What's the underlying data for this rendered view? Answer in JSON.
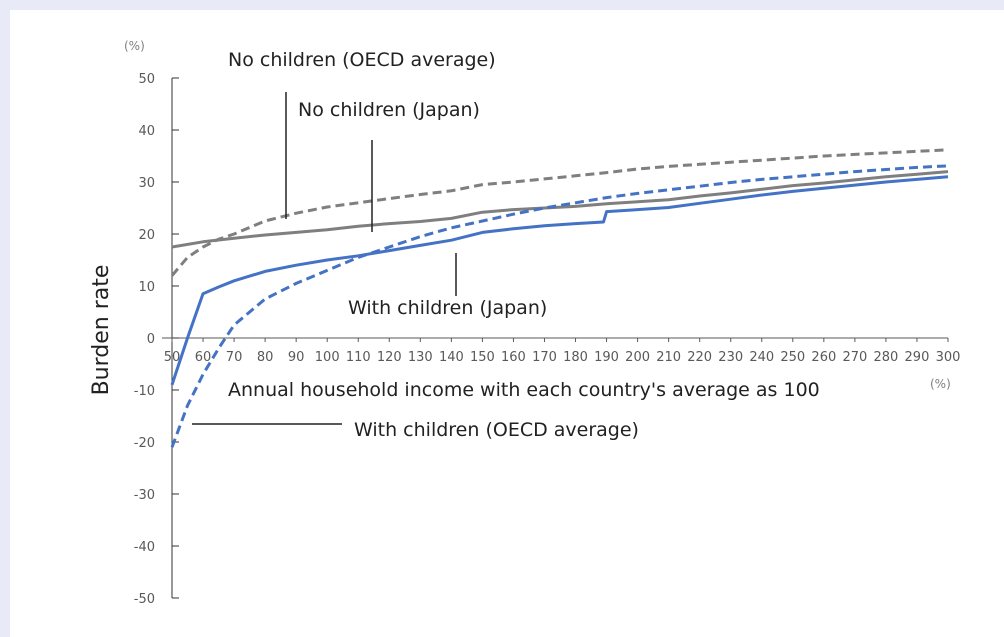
{
  "chart_data": {
    "type": "line",
    "xlabel": "Annual household income with each country's average as 100",
    "ylabel": "Burden rate",
    "x_unit": "(%)",
    "y_unit": "(%)",
    "xlim": [
      50,
      300
    ],
    "ylim": [
      -50,
      50
    ],
    "x_ticks": [
      50,
      60,
      70,
      80,
      90,
      100,
      110,
      120,
      130,
      140,
      150,
      160,
      170,
      180,
      190,
      200,
      210,
      220,
      230,
      240,
      250,
      260,
      270,
      280,
      290,
      300
    ],
    "y_ticks": [
      50,
      40,
      30,
      20,
      10,
      0,
      -10,
      -20,
      -30,
      -40,
      -50
    ],
    "grid": false,
    "legend": "none",
    "series": [
      {
        "name": "No children (OECD average)",
        "color": "#7f7f7f",
        "style": "dashed",
        "points": [
          [
            50,
            12
          ],
          [
            55,
            15.5
          ],
          [
            60,
            17.5
          ],
          [
            65,
            19
          ],
          [
            70,
            20
          ],
          [
            80,
            22.5
          ],
          [
            90,
            24
          ],
          [
            100,
            25.2
          ],
          [
            110,
            26
          ],
          [
            120,
            26.8
          ],
          [
            130,
            27.6
          ],
          [
            140,
            28.3
          ],
          [
            150,
            29.5
          ],
          [
            160,
            30
          ],
          [
            170,
            30.6
          ],
          [
            180,
            31.2
          ],
          [
            190,
            31.8
          ],
          [
            200,
            32.5
          ],
          [
            210,
            33
          ],
          [
            220,
            33.4
          ],
          [
            230,
            33.8
          ],
          [
            240,
            34.2
          ],
          [
            250,
            34.6
          ],
          [
            260,
            35
          ],
          [
            270,
            35.3
          ],
          [
            280,
            35.6
          ],
          [
            290,
            35.9
          ],
          [
            300,
            36.2
          ]
        ]
      },
      {
        "name": "No children (Japan)",
        "color": "#7f7f7f",
        "style": "solid",
        "points": [
          [
            50,
            17.5
          ],
          [
            60,
            18.5
          ],
          [
            70,
            19.2
          ],
          [
            80,
            19.8
          ],
          [
            90,
            20.3
          ],
          [
            100,
            20.8
          ],
          [
            110,
            21.5
          ],
          [
            120,
            22
          ],
          [
            130,
            22.4
          ],
          [
            140,
            23
          ],
          [
            150,
            24.2
          ],
          [
            160,
            24.7
          ],
          [
            170,
            25
          ],
          [
            180,
            25.3
          ],
          [
            190,
            25.8
          ],
          [
            200,
            26.2
          ],
          [
            210,
            26.6
          ],
          [
            220,
            27.3
          ],
          [
            230,
            27.9
          ],
          [
            240,
            28.6
          ],
          [
            250,
            29.3
          ],
          [
            260,
            29.8
          ],
          [
            270,
            30.4
          ],
          [
            280,
            31
          ],
          [
            290,
            31.5
          ],
          [
            300,
            32
          ]
        ]
      },
      {
        "name": "With children (Japan)",
        "color": "#4472c4",
        "style": "solid",
        "points": [
          [
            50,
            -9
          ],
          [
            55,
            0
          ],
          [
            60,
            8.5
          ],
          [
            65,
            9.8
          ],
          [
            70,
            11
          ],
          [
            80,
            12.8
          ],
          [
            90,
            14
          ],
          [
            100,
            15
          ],
          [
            110,
            15.8
          ],
          [
            120,
            16.8
          ],
          [
            130,
            17.8
          ],
          [
            140,
            18.8
          ],
          [
            150,
            20.3
          ],
          [
            160,
            21
          ],
          [
            170,
            21.6
          ],
          [
            180,
            22
          ],
          [
            189,
            22.3
          ],
          [
            190,
            24.3
          ],
          [
            200,
            24.7
          ],
          [
            210,
            25.1
          ],
          [
            220,
            25.9
          ],
          [
            230,
            26.7
          ],
          [
            240,
            27.5
          ],
          [
            250,
            28.2
          ],
          [
            260,
            28.8
          ],
          [
            270,
            29.4
          ],
          [
            280,
            30
          ],
          [
            290,
            30.5
          ],
          [
            300,
            31
          ]
        ]
      },
      {
        "name": "With children (OECD average)",
        "color": "#4472c4",
        "style": "dashed",
        "points": [
          [
            50,
            -21
          ],
          [
            55,
            -13
          ],
          [
            60,
            -7
          ],
          [
            65,
            -2
          ],
          [
            70,
            2.5
          ],
          [
            80,
            7.5
          ],
          [
            90,
            10.5
          ],
          [
            100,
            13
          ],
          [
            110,
            15.5
          ],
          [
            120,
            17.5
          ],
          [
            130,
            19.5
          ],
          [
            140,
            21.2
          ],
          [
            150,
            22.5
          ],
          [
            160,
            23.8
          ],
          [
            170,
            25
          ],
          [
            180,
            26
          ],
          [
            190,
            27
          ],
          [
            200,
            27.8
          ],
          [
            210,
            28.5
          ],
          [
            220,
            29.2
          ],
          [
            230,
            29.9
          ],
          [
            240,
            30.5
          ],
          [
            250,
            31
          ],
          [
            260,
            31.5
          ],
          [
            270,
            32
          ],
          [
            280,
            32.4
          ],
          [
            290,
            32.8
          ],
          [
            300,
            33.1
          ]
        ]
      }
    ],
    "annotations": [
      {
        "text": "No children (OECD average)",
        "series": "No children (OECD average)"
      },
      {
        "text": "No children (Japan)",
        "series": "No children (Japan)"
      },
      {
        "text": "With children (Japan)",
        "series": "With children (Japan)"
      },
      {
        "text": "With children (OECD average)",
        "series": "With children (OECD average)"
      }
    ]
  }
}
